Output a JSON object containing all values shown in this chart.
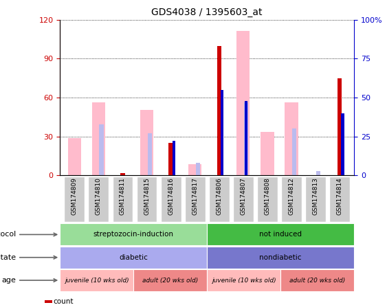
{
  "title": "GDS4038 / 1395603_at",
  "samples": [
    "GSM174809",
    "GSM174810",
    "GSM174811",
    "GSM174815",
    "GSM174816",
    "GSM174817",
    "GSM174806",
    "GSM174807",
    "GSM174808",
    "GSM174812",
    "GSM174813",
    "GSM174814"
  ],
  "count": [
    0,
    0,
    2,
    0,
    25,
    0,
    100,
    0,
    0,
    0,
    0,
    75
  ],
  "percentile_rank": [
    0,
    0,
    0,
    0,
    22,
    0,
    55,
    48,
    0,
    0,
    0,
    40
  ],
  "value_absent": [
    24,
    47,
    0,
    42,
    0,
    7,
    0,
    93,
    28,
    47,
    0,
    0
  ],
  "rank_absent": [
    0,
    33,
    0,
    27,
    0,
    8,
    0,
    47,
    0,
    30,
    3,
    0
  ],
  "ylim_left": [
    0,
    120
  ],
  "ylim_right": [
    0,
    100
  ],
  "yticks_left": [
    0,
    30,
    60,
    90,
    120
  ],
  "yticks_right": [
    0,
    25,
    50,
    75,
    100
  ],
  "protocol_groups": [
    {
      "label": "streptozocin-induction",
      "start": 0,
      "end": 6,
      "color": "#99DD99"
    },
    {
      "label": "not induced",
      "start": 6,
      "end": 12,
      "color": "#44BB44"
    }
  ],
  "disease_groups": [
    {
      "label": "diabetic",
      "start": 0,
      "end": 6,
      "color": "#AAAAEE"
    },
    {
      "label": "nondiabetic",
      "start": 6,
      "end": 12,
      "color": "#7777CC"
    }
  ],
  "age_groups": [
    {
      "label": "juvenile (10 wks old)",
      "start": 0,
      "end": 3,
      "color": "#FFBBBB"
    },
    {
      "label": "adult (20 wks old)",
      "start": 3,
      "end": 6,
      "color": "#EE8888"
    },
    {
      "label": "juvenile (10 wks old)",
      "start": 6,
      "end": 9,
      "color": "#FFBBBB"
    },
    {
      "label": "adult (20 wks old)",
      "start": 9,
      "end": 12,
      "color": "#EE8888"
    }
  ],
  "count_color": "#CC0000",
  "percentile_color": "#0000CC",
  "value_absent_color": "#FFBBCC",
  "rank_absent_color": "#BBBBEE",
  "left_tick_color": "#CC0000",
  "right_tick_color": "#0000CC",
  "sample_box_color": "#CCCCCC",
  "scale_factor": 1.2
}
